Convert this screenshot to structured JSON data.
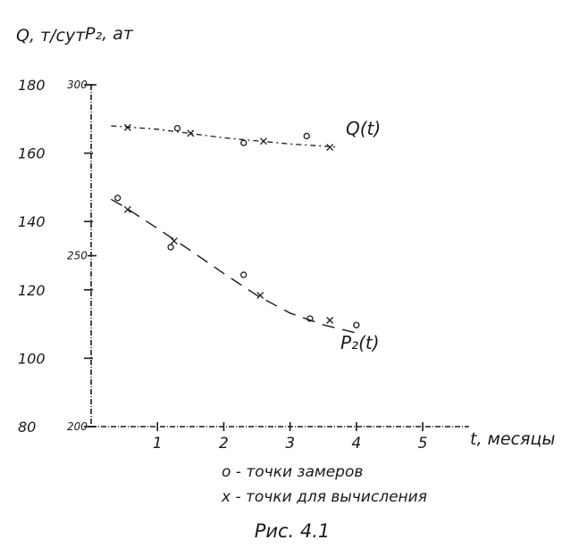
{
  "chart_data": {
    "type": "line",
    "title": "",
    "caption": "Рис. 4.1",
    "xlabel": "t, месяцы",
    "ylabel_left": "Q, т/сут",
    "ylabel_right": "P₂, ат",
    "x_ticks": [
      1,
      2,
      3,
      4,
      5
    ],
    "q_ticks": [
      80,
      100,
      120,
      140,
      160,
      180
    ],
    "p_ticks": [
      200,
      250,
      300
    ],
    "xlim": [
      0,
      5.7
    ],
    "q_lim": [
      80,
      180
    ],
    "p_lim": [
      200,
      300
    ],
    "grid": false,
    "legend": [
      {
        "symbol": "o",
        "label": "о - точки замеров"
      },
      {
        "symbol": "x",
        "label": "х - точки для вычисления"
      }
    ],
    "series": [
      {
        "name": "Q(t)",
        "axis": "left",
        "curve": [
          [
            0.3,
            168
          ],
          [
            1.0,
            167
          ],
          [
            2.0,
            164.5
          ],
          [
            3.0,
            162.7
          ],
          [
            3.7,
            161.8
          ]
        ],
        "measured": [
          [
            1.3,
            167.3
          ],
          [
            2.3,
            163
          ],
          [
            3.25,
            165
          ]
        ],
        "calculated": [
          [
            0.55,
            167.5
          ],
          [
            1.5,
            165.8
          ],
          [
            2.6,
            163.5
          ],
          [
            3.6,
            161.7
          ]
        ]
      },
      {
        "name": "P₂(t)",
        "axis": "right",
        "curve": [
          [
            0.3,
            266.5
          ],
          [
            0.5,
            264.3
          ],
          [
            1.0,
            258
          ],
          [
            1.5,
            251.5
          ],
          [
            2.0,
            244.8
          ],
          [
            2.5,
            238.4
          ],
          [
            3.0,
            233.2
          ],
          [
            3.5,
            229.8
          ],
          [
            4.0,
            227.4
          ]
        ],
        "measured": [
          [
            0.4,
            266.9
          ],
          [
            1.2,
            252.5
          ],
          [
            2.3,
            244.4
          ],
          [
            3.3,
            231.6
          ],
          [
            4.0,
            229.7
          ]
        ],
        "calculated": [
          [
            0.55,
            263.5
          ],
          [
            1.25,
            254.3
          ],
          [
            2.55,
            238.4
          ],
          [
            3.6,
            231.1
          ]
        ]
      }
    ]
  }
}
